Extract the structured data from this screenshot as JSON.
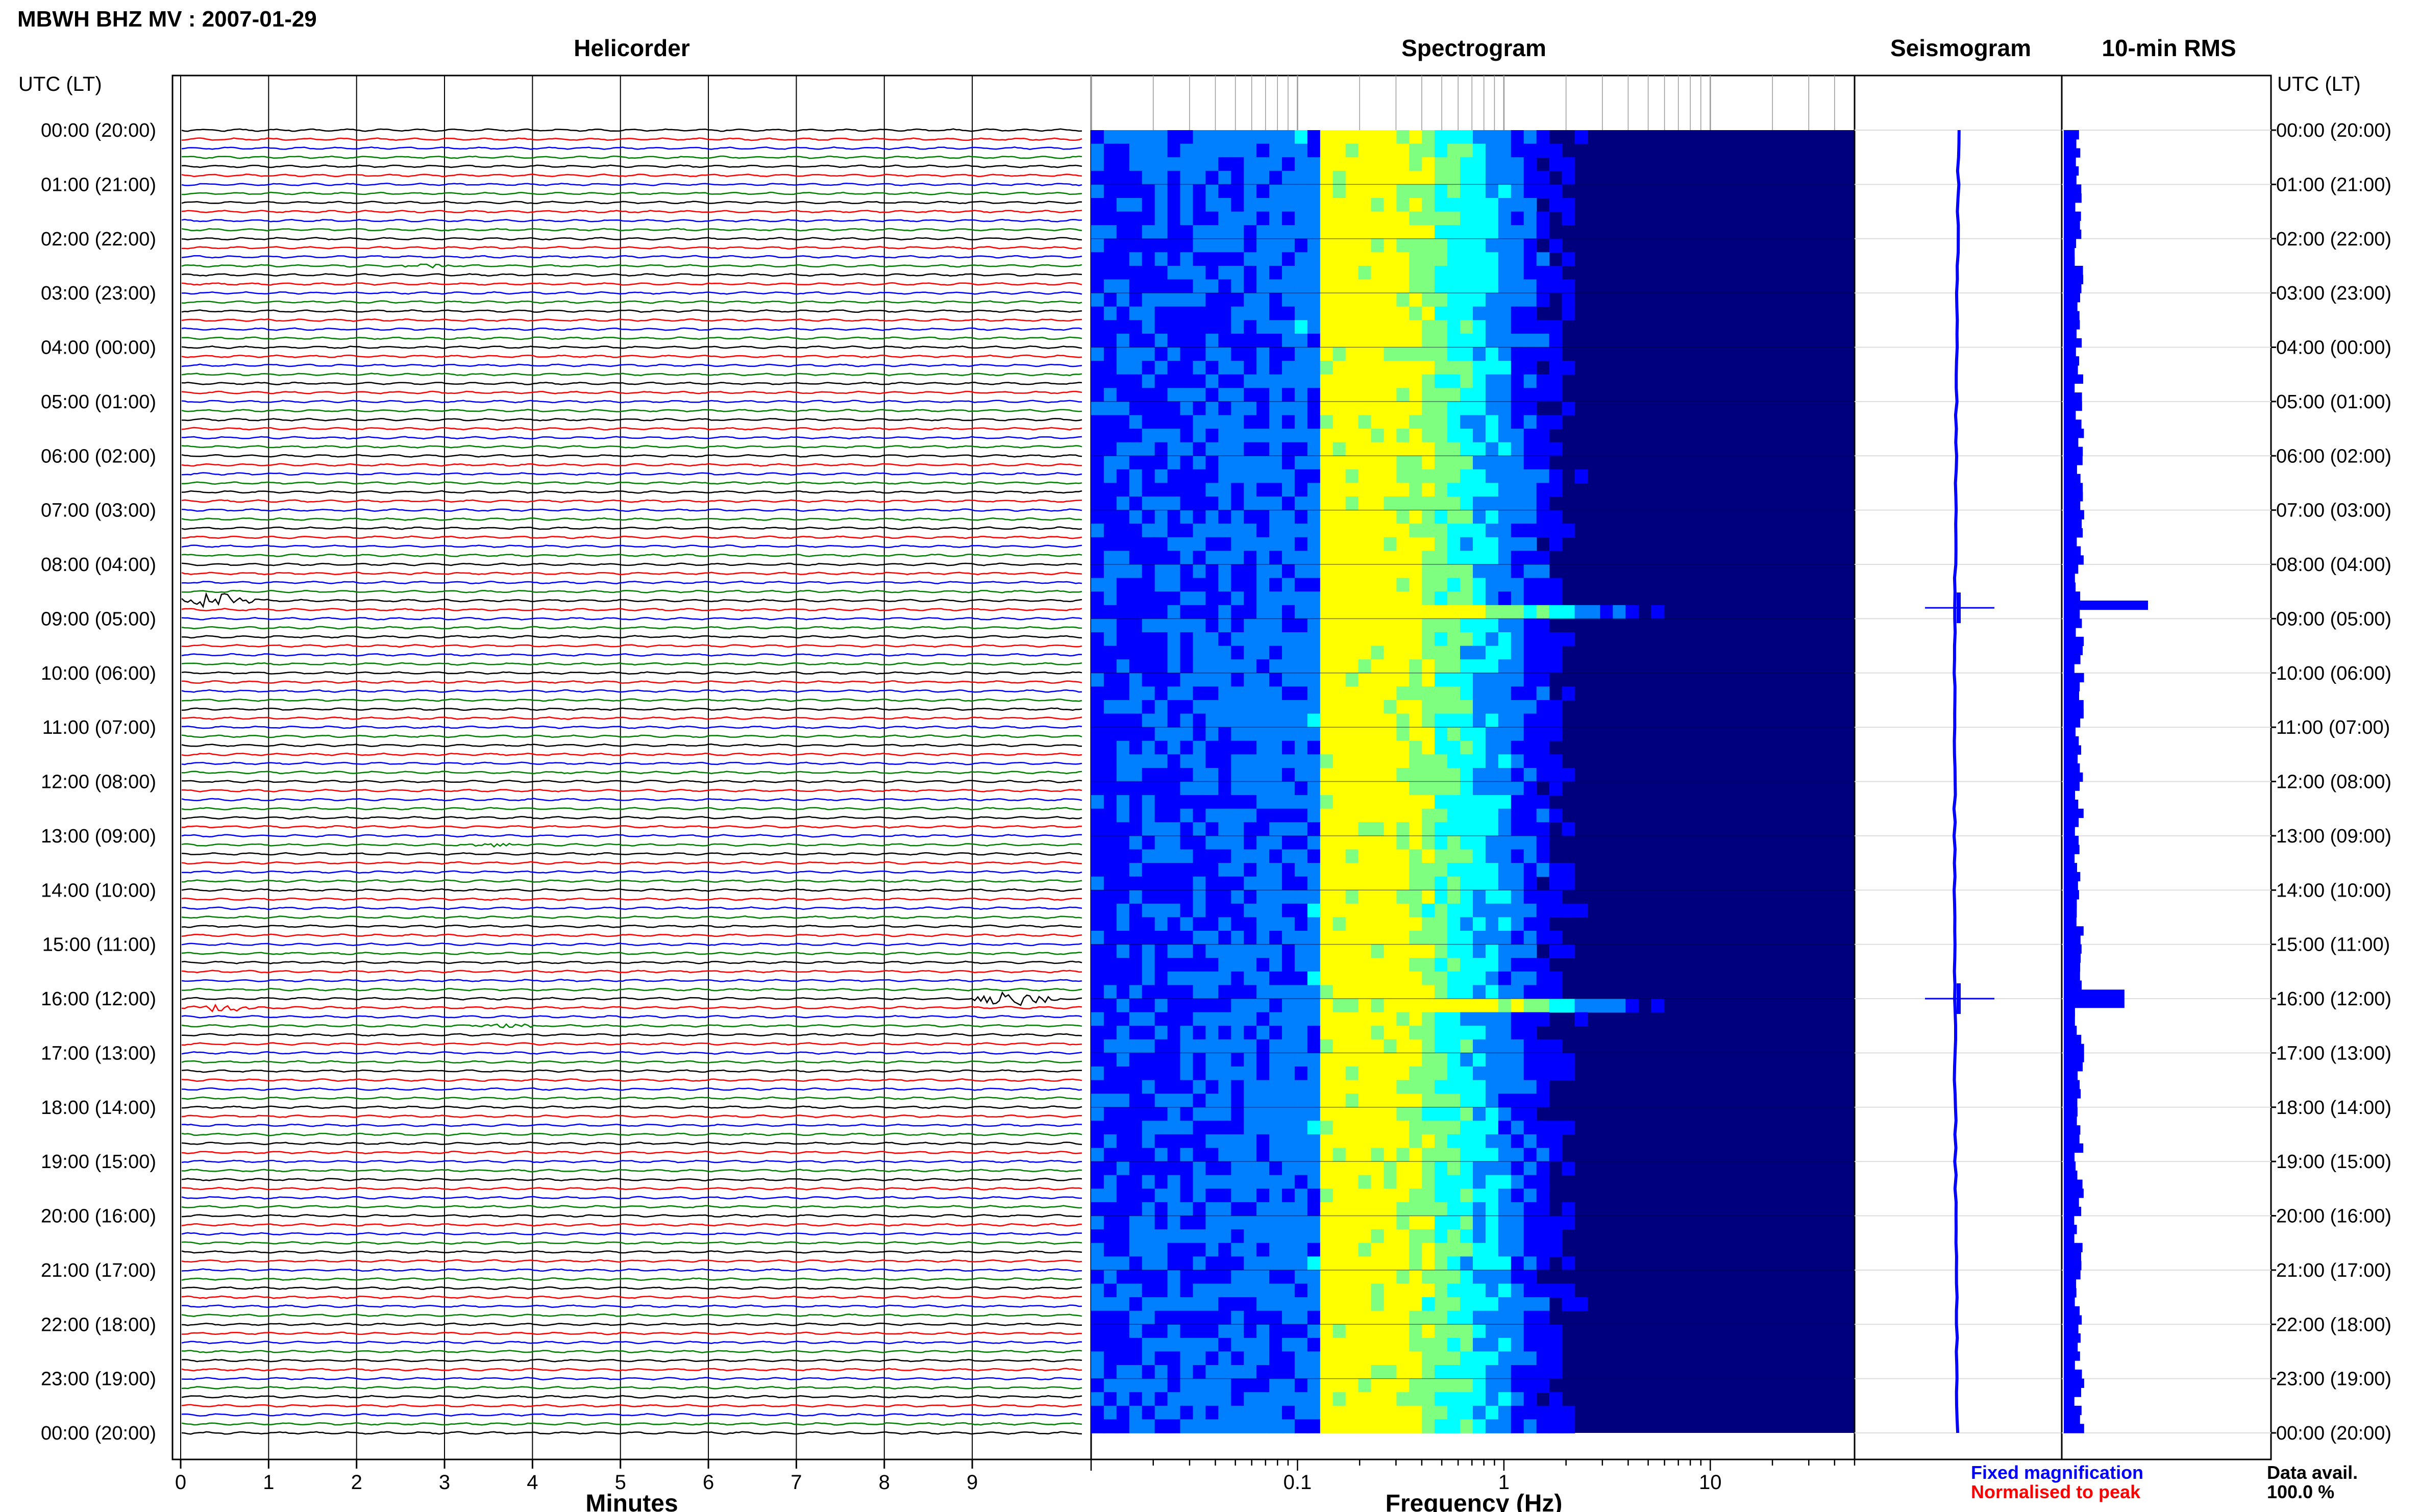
{
  "figure": {
    "title": "MBWH BHZ MV : 2007-01-29",
    "panels": {
      "helicorder": "Helicorder",
      "spectrogram": "Spectrogram",
      "seismogram": "Seismogram",
      "rms": "10-min RMS"
    },
    "time_header_left": "UTC (LT)",
    "time_header_right": "UTC (LT)",
    "time_labels": [
      "00:00 (20:00)",
      "01:00 (21:00)",
      "02:00 (22:00)",
      "03:00 (23:00)",
      "04:00 (00:00)",
      "05:00 (01:00)",
      "06:00 (02:00)",
      "07:00 (03:00)",
      "08:00 (04:00)",
      "09:00 (05:00)",
      "10:00 (06:00)",
      "11:00 (07:00)",
      "12:00 (08:00)",
      "13:00 (09:00)",
      "14:00 (10:00)",
      "15:00 (11:00)",
      "16:00 (12:00)",
      "17:00 (13:00)",
      "18:00 (14:00)",
      "19:00 (15:00)",
      "20:00 (16:00)",
      "21:00 (17:00)",
      "22:00 (18:00)",
      "23:00 (19:00)",
      "00:00 (20:00)"
    ],
    "legend": {
      "fixed": "Fixed magnification",
      "normalised": "Normalised to peak",
      "fixed_color": "#0000ff",
      "normalised_color": "#ff0000"
    },
    "data_avail_label": "Data avail.",
    "data_avail_value": "100.0 %"
  },
  "chart_data": [
    {
      "type": "line",
      "title": "Helicorder",
      "xlabel": "Minutes",
      "x_ticks": [
        0,
        1,
        2,
        3,
        4,
        5,
        6,
        7,
        8,
        9
      ],
      "xlim": [
        0,
        10
      ],
      "rows_per_hour": 6,
      "trace_colors": [
        "#000000",
        "#ff0000",
        "#0000ff",
        "#008000"
      ],
      "events": [
        {
          "row": 52,
          "start_min": 0.0,
          "end_min": 0.9,
          "amplitude": "large"
        },
        {
          "row": 96,
          "start_min": 9.0,
          "end_min": 10.0,
          "amplitude": "large"
        },
        {
          "row": 97,
          "start_min": 0.0,
          "end_min": 0.9,
          "amplitude": "medium"
        },
        {
          "row": 99,
          "start_min": 3.3,
          "end_min": 4.2,
          "amplitude": "small"
        },
        {
          "row": 79,
          "start_min": 3.2,
          "end_min": 3.9,
          "amplitude": "small"
        },
        {
          "row": 15,
          "start_min": 2.4,
          "end_min": 3.2,
          "amplitude": "small"
        }
      ]
    },
    {
      "type": "heatmap",
      "title": "Spectrogram",
      "xlabel": "Frequency (Hz)",
      "x_scale": "log",
      "xlim": [
        0.01,
        50
      ],
      "x_ticks": [
        0.1,
        1,
        10
      ],
      "x_tick_labels": [
        "0.1",
        "1",
        "10"
      ],
      "colormap": [
        "#00007f",
        "#0000ff",
        "#007fff",
        "#00ffff",
        "#7fff7f",
        "#ffff00"
      ],
      "peak_band_hz": [
        0.12,
        0.3
      ],
      "event_rows": [
        8.8,
        16.0
      ]
    },
    {
      "type": "line",
      "title": "Seismogram",
      "color": "#0000ff",
      "event_rows": [
        8.8,
        16.0
      ]
    },
    {
      "type": "bar",
      "title": "10-min RMS",
      "color": "#0000ff",
      "baseline_level": 0.22,
      "peaks": [
        {
          "hour": 8.8,
          "value": 1.0
        },
        {
          "hour": 16.0,
          "value": 0.72
        }
      ]
    }
  ]
}
